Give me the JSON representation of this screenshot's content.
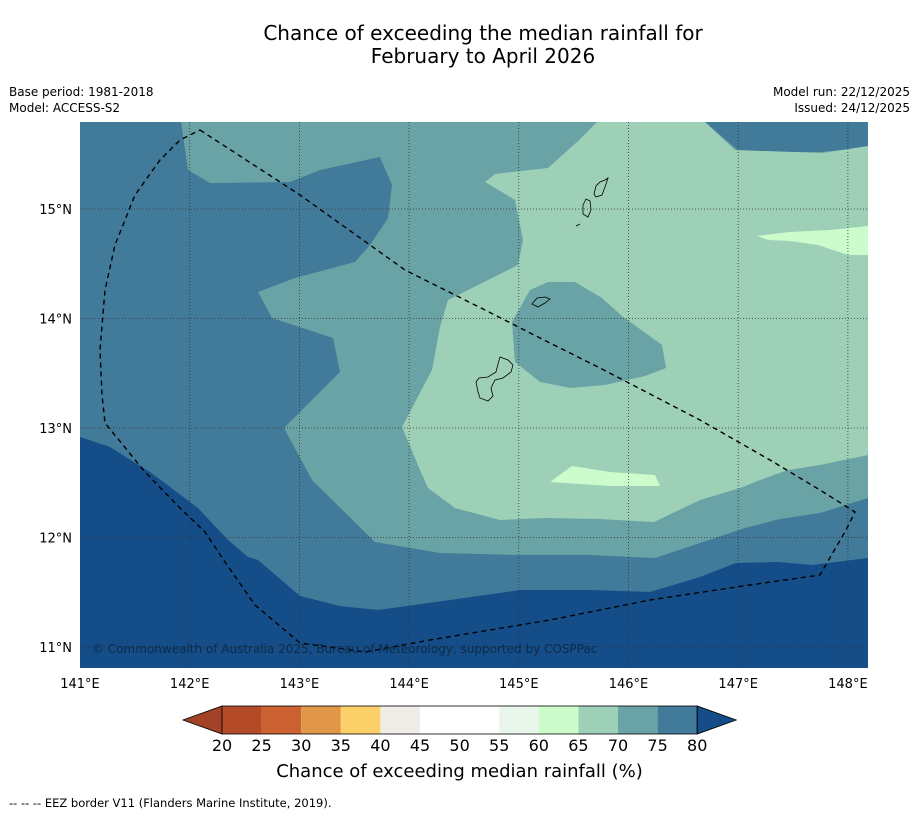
{
  "header": {
    "title_line1": "Chance of exceeding the median rainfall for",
    "title_line2": "February to April 2026",
    "base_period": "Base period: 1981-2018",
    "model": "Model: ACCESS-S2",
    "model_run": "Model run: 22/12/2025",
    "issued": "Issued: 24/12/2025"
  },
  "map": {
    "copyright": "© Commonwealth of Australia 2025, Bureau of Meteorology, supported by COSPPac",
    "lon_labels": [
      "141°E",
      "142°E",
      "143°E",
      "144°E",
      "145°E",
      "146°E",
      "147°E",
      "148°E"
    ],
    "lat_labels": [
      "15°N",
      "14°N",
      "13°N",
      "12°N",
      "11°N"
    ],
    "colors": {
      "c55_60": "#e8f6ec",
      "c60_65": "#ccfccc",
      "c65_70": "#9ed0b8",
      "c70_75": "#6aa3a5",
      "c75_80": "#427a99",
      "c80_plus": "#144d88",
      "eez_line": "#000000",
      "gridline": "#333333"
    }
  },
  "colorbar": {
    "labels": [
      "20",
      "25",
      "30",
      "35",
      "40",
      "45",
      "50",
      "55",
      "60",
      "65",
      "70",
      "75",
      "80"
    ],
    "colors": [
      "#b24a28",
      "#cc6232",
      "#e19648",
      "#fcd069",
      "#efebe7",
      "#ffffff",
      "#ffffff",
      "#e8f6ec",
      "#ccfccc",
      "#9ed0b8",
      "#6aa3a5",
      "#427a99"
    ],
    "under_color": "#a24327",
    "over_color": "#144d88",
    "title": "Chance of exceeding median rainfall (%)"
  },
  "footer": {
    "legend_text": "--  --  -- EEZ border V11 (Flanders Marine Institute, 2019)."
  }
}
